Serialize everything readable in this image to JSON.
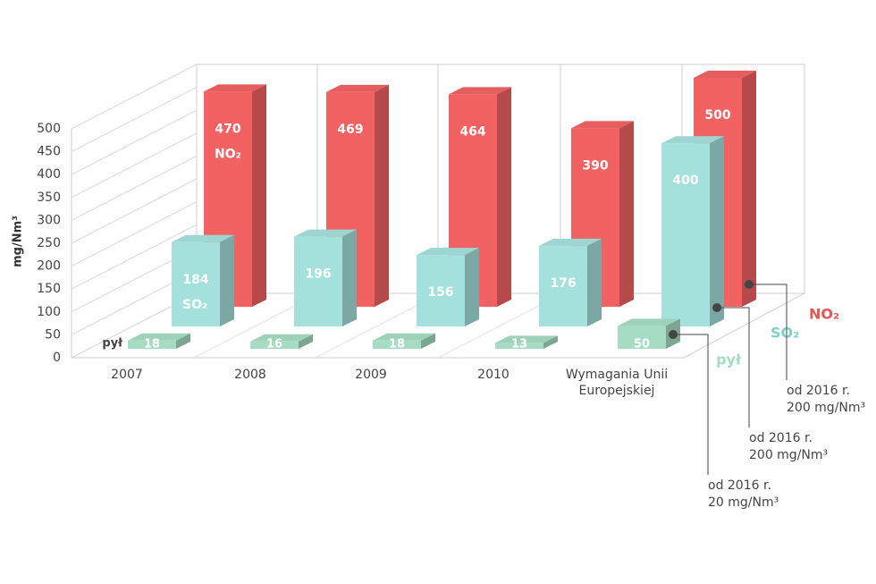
{
  "chart_data": {
    "type": "bar3d",
    "ylabel": "mg/Nm³",
    "categories": [
      "2007",
      "2008",
      "2009",
      "2010",
      "Wymagania Unii Europejskiej"
    ],
    "series": [
      {
        "name": "pył",
        "color": "#a6dcc4",
        "values": [
          18,
          16,
          18,
          13,
          50
        ]
      },
      {
        "name": "SO₂",
        "color": "#a4e0dc",
        "values": [
          184,
          196,
          156,
          176,
          400
        ]
      },
      {
        "name": "NO₂",
        "color": "#f26262",
        "values": [
          470,
          469,
          464,
          390,
          500
        ]
      }
    ],
    "ylim": [
      0,
      500
    ],
    "yticks": [
      0,
      50,
      100,
      150,
      200,
      250,
      300,
      350,
      400,
      450,
      500
    ],
    "annotations": [
      {
        "lines": [
          "od 2016 r.",
          "20 mg/Nm³"
        ]
      },
      {
        "lines": [
          "od 2016 r.",
          "200 mg/Nm³"
        ]
      },
      {
        "lines": [
          "od 2016 r.",
          "200 mg/Nm³"
        ]
      }
    ]
  }
}
